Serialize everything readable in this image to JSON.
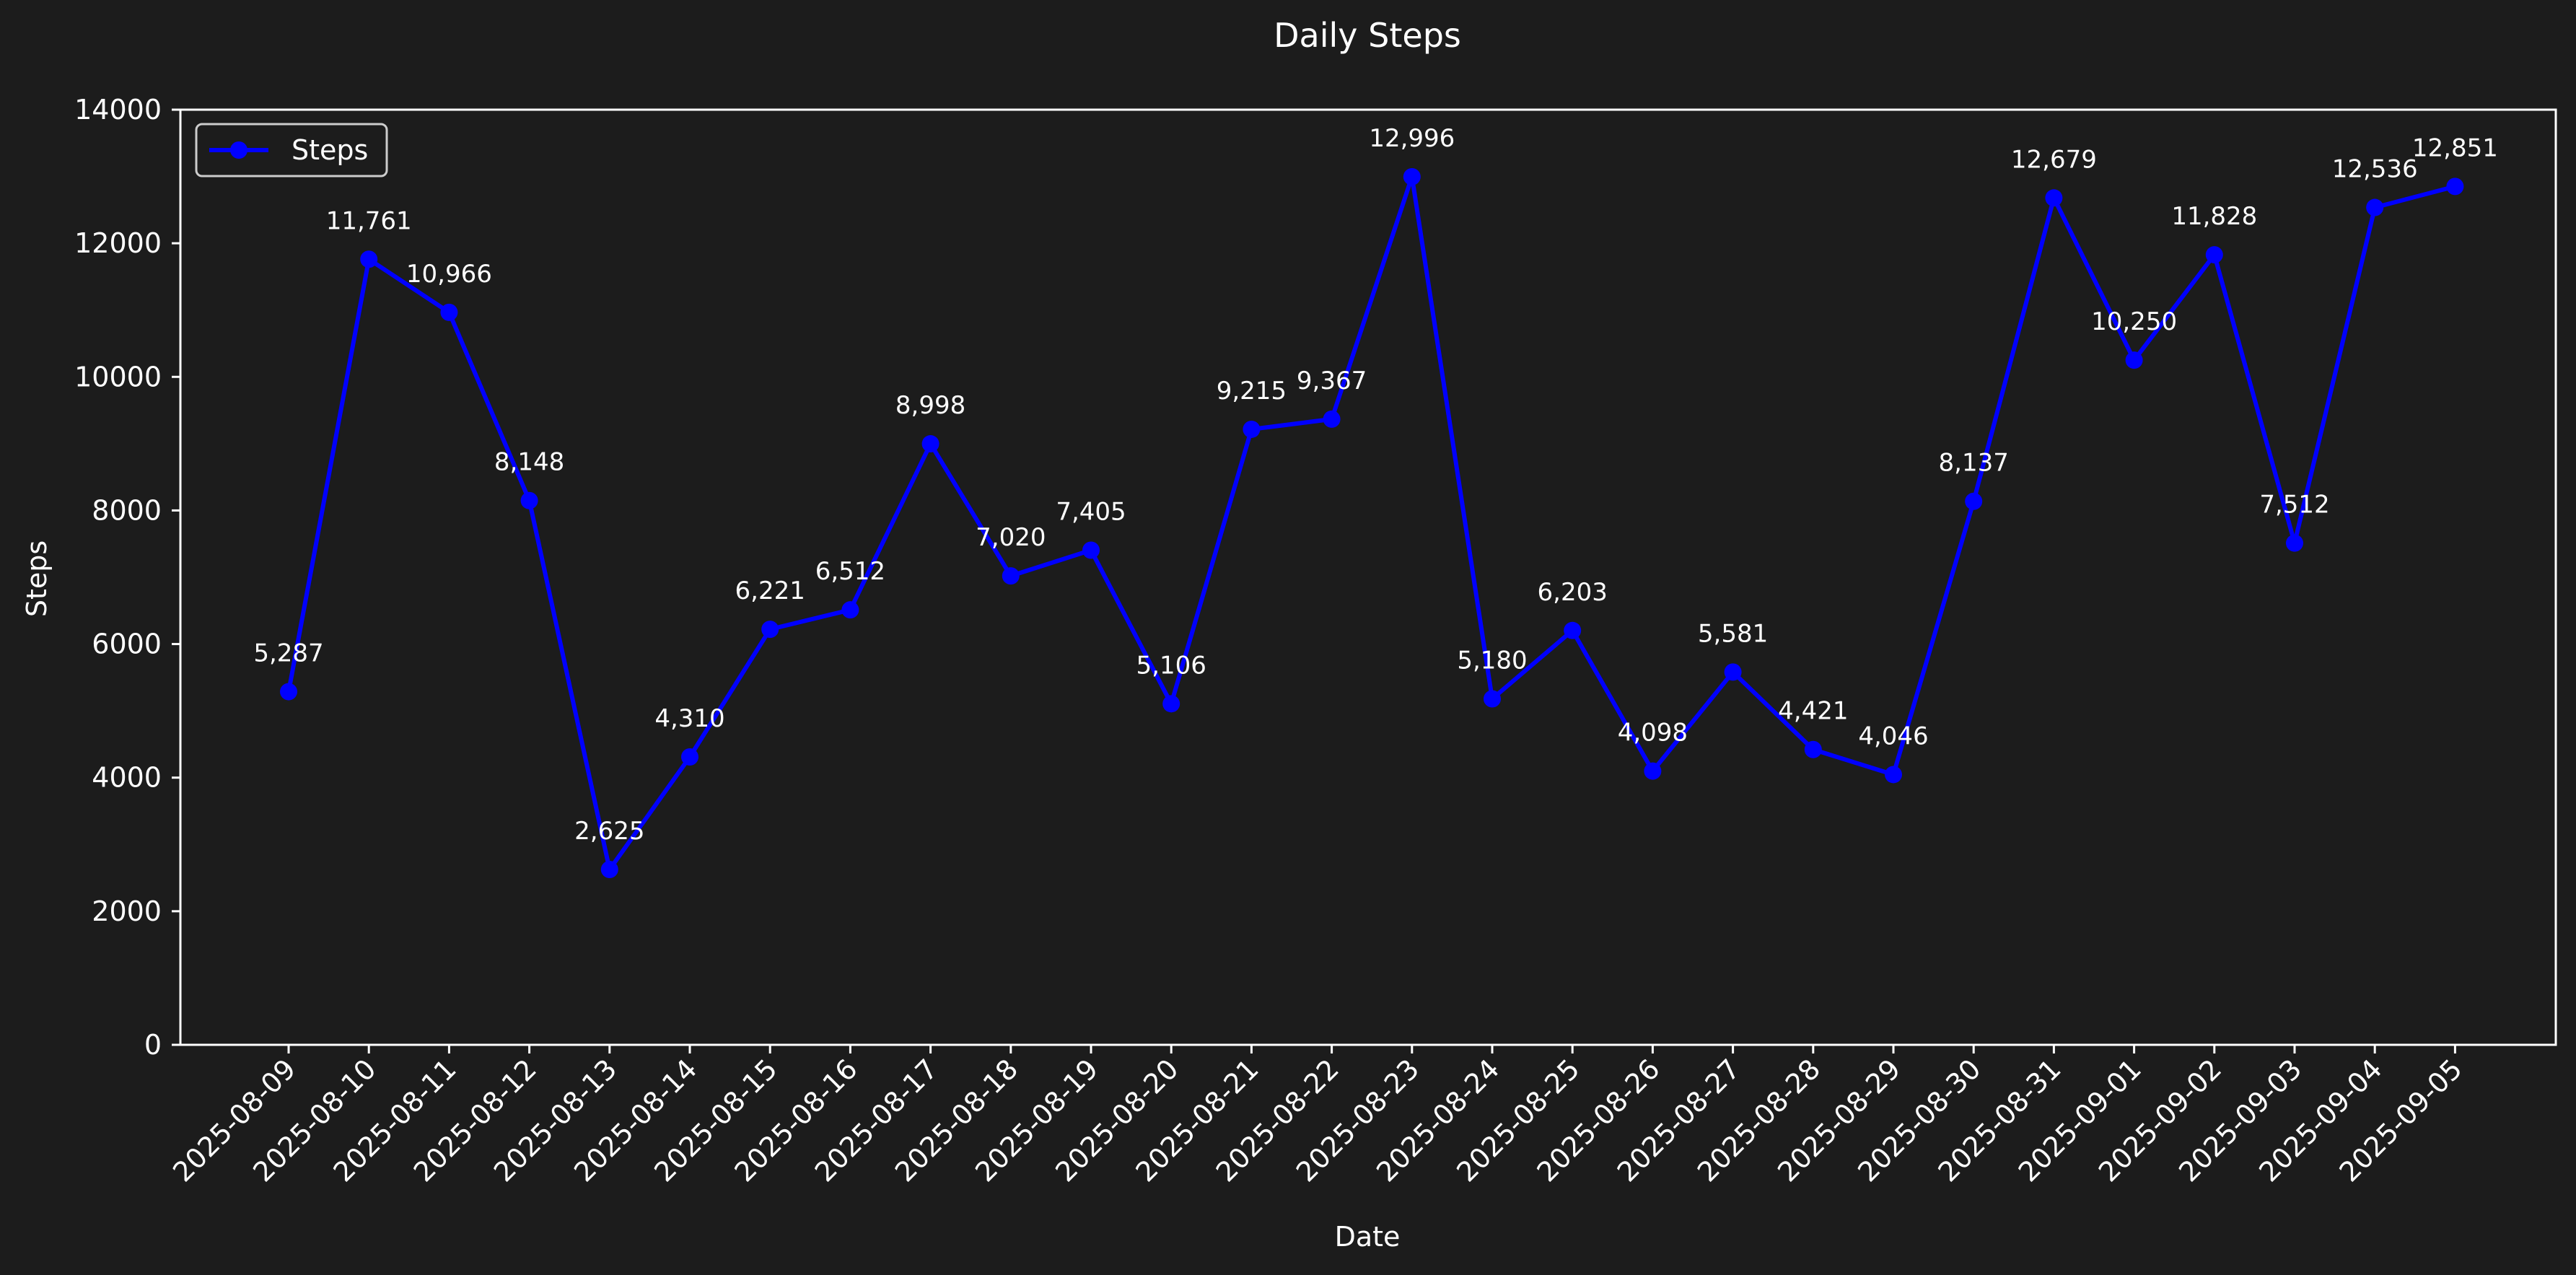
{
  "chart_data": {
    "type": "line",
    "title": "Daily Steps",
    "xlabel": "Date",
    "ylabel": "Steps",
    "ylim": [
      0,
      14000
    ],
    "yticks": [
      0,
      2000,
      4000,
      6000,
      8000,
      10000,
      12000,
      14000
    ],
    "grid": false,
    "legend": {
      "placement": "top-left",
      "entries": [
        "Steps"
      ]
    },
    "x": [
      "2025-08-09",
      "2025-08-10",
      "2025-08-11",
      "2025-08-12",
      "2025-08-13",
      "2025-08-14",
      "2025-08-15",
      "2025-08-16",
      "2025-08-17",
      "2025-08-18",
      "2025-08-19",
      "2025-08-20",
      "2025-08-21",
      "2025-08-22",
      "2025-08-23",
      "2025-08-24",
      "2025-08-25",
      "2025-08-26",
      "2025-08-27",
      "2025-08-28",
      "2025-08-29",
      "2025-08-30",
      "2025-08-31",
      "2025-09-01",
      "2025-09-02",
      "2025-09-03",
      "2025-09-04",
      "2025-09-05"
    ],
    "series": [
      {
        "name": "Steps",
        "color": "#0000ff",
        "values": [
          5287,
          11761,
          10966,
          8148,
          2625,
          4310,
          6221,
          6512,
          8998,
          7020,
          7405,
          5106,
          9215,
          9367,
          12996,
          5180,
          6203,
          4098,
          5581,
          4421,
          4046,
          8137,
          12679,
          10250,
          11828,
          7512,
          12536,
          12851
        ],
        "labels": [
          "5,287",
          "11,761",
          "10,966",
          "8,148",
          "2,625",
          "4,310",
          "6,221",
          "6,512",
          "8,998",
          "7,020",
          "7,405",
          "5,106",
          "9,215",
          "9,367",
          "12,996",
          "5,180",
          "6,203",
          "4,098",
          "5,581",
          "4,421",
          "4,046",
          "8,137",
          "12,679",
          "10,250",
          "11,828",
          "7,512",
          "12,536",
          "12,851"
        ]
      }
    ],
    "colors": {
      "background": "#1c1c1c",
      "text": "#ffffff",
      "axes": "#ffffff",
      "line": "#0000ff"
    }
  }
}
